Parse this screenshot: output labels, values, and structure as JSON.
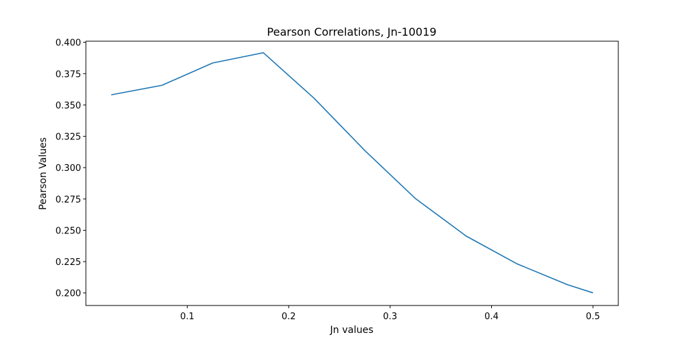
{
  "chart_data": {
    "type": "line",
    "title": "Pearson Correlations, Jn-10019",
    "xlabel": "Jn values",
    "ylabel": "Pearson Values",
    "xlim": [
      0.0,
      0.525
    ],
    "ylim": [
      0.19,
      0.4009
    ],
    "x_ticks": [
      0.1,
      0.2,
      0.3,
      0.4,
      0.5
    ],
    "x_tick_labels": [
      "0.1",
      "0.2",
      "0.3",
      "0.4",
      "0.5"
    ],
    "y_ticks": [
      0.2,
      0.225,
      0.25,
      0.275,
      0.3,
      0.325,
      0.35,
      0.375,
      0.4
    ],
    "y_tick_labels": [
      "0.200",
      "0.225",
      "0.250",
      "0.275",
      "0.300",
      "0.325",
      "0.350",
      "0.375",
      "0.400"
    ],
    "grid": false,
    "series": [
      {
        "color": "#1f77b4",
        "x": [
          0.025,
          0.075,
          0.125,
          0.175,
          0.225,
          0.275,
          0.325,
          0.375,
          0.425,
          0.475,
          0.5
        ],
        "y": [
          0.3581,
          0.3657,
          0.3835,
          0.3917,
          0.3554,
          0.3137,
          0.2753,
          0.2454,
          0.2233,
          0.2066,
          0.2001
        ]
      }
    ]
  }
}
